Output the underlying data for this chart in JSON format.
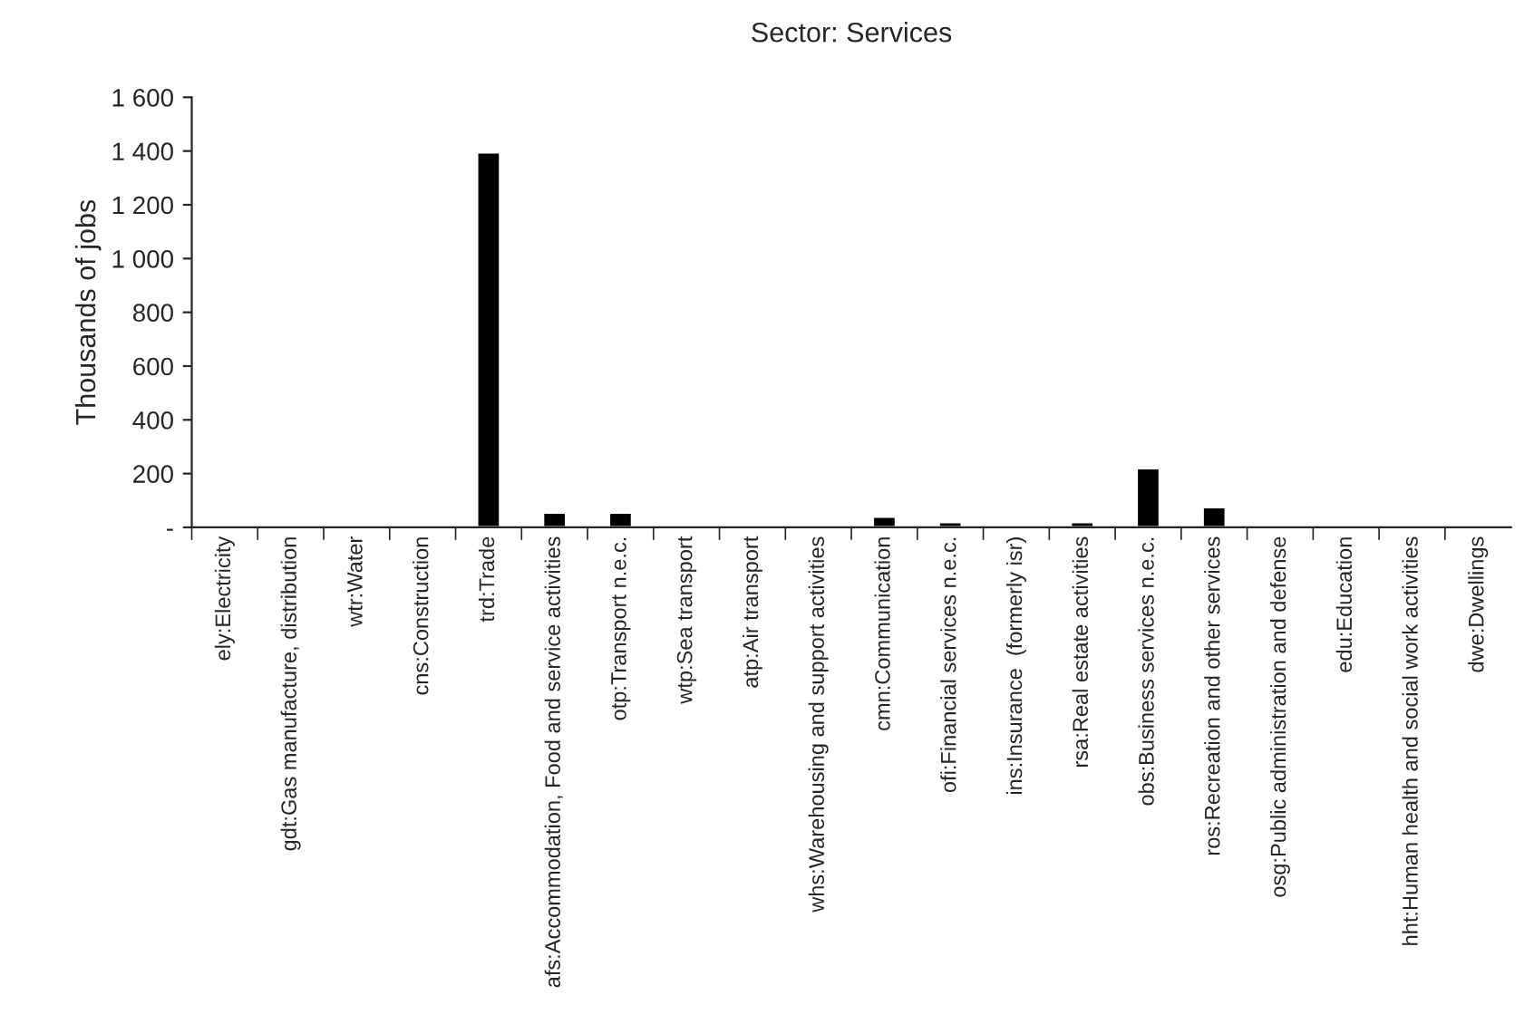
{
  "chart_data": {
    "type": "bar",
    "title": "Sector: Services",
    "ylabel": "Thousands of jobs",
    "categories": [
      "ely:Electricity",
      "gdt:Gas manufacture, distribution",
      "wtr:Water",
      "cns:Construction",
      "trd:Trade",
      "afs:Accommodation, Food and service activities",
      "otp:Transport n.e.c.",
      "wtp:Sea transport",
      "atp:Air transport",
      "whs:Warehousing and support activities",
      "cmn:Communication",
      "ofi:Financial services n.e.c.",
      "ins:Insurance  (formerly isr)",
      "rsa:Real estate activities",
      "obs:Business services n.e.c.",
      "ros:Recreation and other services",
      "osg:Public administration and defense",
      "edu:Education",
      "hht:Human health and social work activities",
      "dwe:Dwellings"
    ],
    "values": [
      8,
      8,
      8,
      8,
      1395,
      55,
      55,
      8,
      8,
      8,
      40,
      20,
      8,
      20,
      220,
      75,
      8,
      8,
      8,
      8
    ],
    "color": "#000000",
    "ylim": [
      0,
      1600
    ],
    "yticks": [
      {
        "value": 0,
        "label": "-"
      },
      200,
      400,
      600,
      800,
      {
        "value": 1000,
        "label": "1 000"
      },
      {
        "value": 1200,
        "label": "1 200"
      },
      {
        "value": 1400,
        "label": "1 400"
      },
      {
        "value": 1600,
        "label": "1 600"
      }
    ],
    "grid": false,
    "legend": false
  }
}
